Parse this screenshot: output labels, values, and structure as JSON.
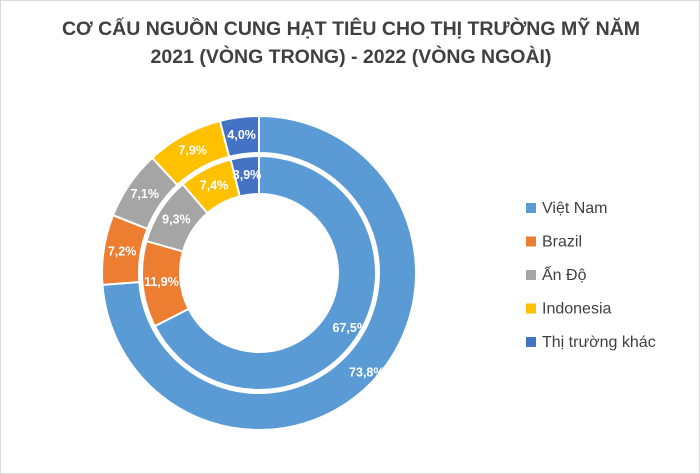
{
  "chart_data": {
    "type": "donut",
    "title": "CƠ CẤU NGUỒN CUNG HẠT TIÊU CHO THỊ TRƯỜNG MỸ NĂM 2021 (VÒNG TRONG) - 2022 (VÒNG NGOÀI)",
    "categories": [
      "Việt Nam",
      "Brazil",
      "Ấn Độ",
      "Indonesia",
      "Thị trường khác"
    ],
    "colors": [
      "#5b9bd5",
      "#ed7d31",
      "#a5a5a5",
      "#ffc000",
      "#4472c4"
    ],
    "series": [
      {
        "values": [
          67.5,
          11.9,
          9.3,
          7.4,
          3.9
        ],
        "value_labels": [
          "67,5%",
          "11,9%",
          "9,3%",
          "7,4%",
          "3,9%"
        ]
      },
      {
        "values": [
          73.8,
          7.2,
          7.1,
          7.9,
          4.0
        ],
        "value_labels": [
          "73,8%",
          "7,2%",
          "7,1%",
          "7,9%",
          "4,0%"
        ]
      }
    ],
    "legend": "right"
  }
}
